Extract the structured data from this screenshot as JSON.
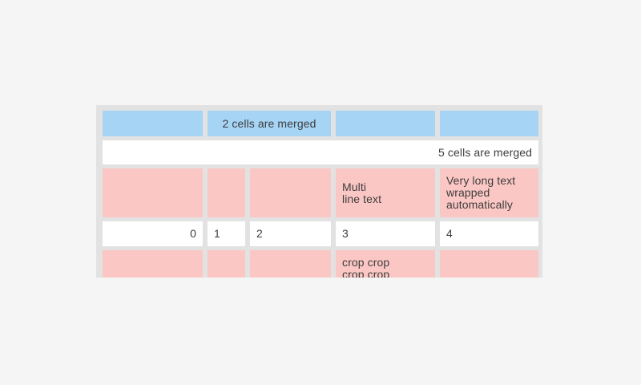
{
  "screen": {
    "background": "#f5f5f5"
  },
  "table": {
    "colors": {
      "screen_bg": "#f5f5f5",
      "table_bg": "#e2e2e2",
      "row_blue": "#a6d4f5",
      "row_pink": "#fbc7c4",
      "cell_white": "#ffffff",
      "text": "#3d3d3d"
    },
    "rows": [
      {
        "cells": [
          {
            "text": ""
          },
          {
            "text": "2 cells are merged"
          },
          {
            "text": ""
          },
          {
            "text": ""
          }
        ]
      },
      {
        "cells": [
          {
            "text": "5 cells are merged"
          }
        ]
      },
      {
        "cells": [
          {
            "text": ""
          },
          {
            "text": ""
          },
          {
            "text": ""
          },
          {
            "text": "Multi\nline text"
          },
          {
            "text": "Very long text wrapped automatically"
          }
        ]
      },
      {
        "cells": [
          {
            "text": "0"
          },
          {
            "text": "1"
          },
          {
            "text": "2"
          },
          {
            "text": "3"
          },
          {
            "text": "4"
          }
        ]
      },
      {
        "cells": [
          {
            "text": ""
          },
          {
            "text": ""
          },
          {
            "text": ""
          },
          {
            "text": "crop crop\ncrop crop"
          },
          {
            "text": ""
          }
        ]
      }
    ]
  }
}
